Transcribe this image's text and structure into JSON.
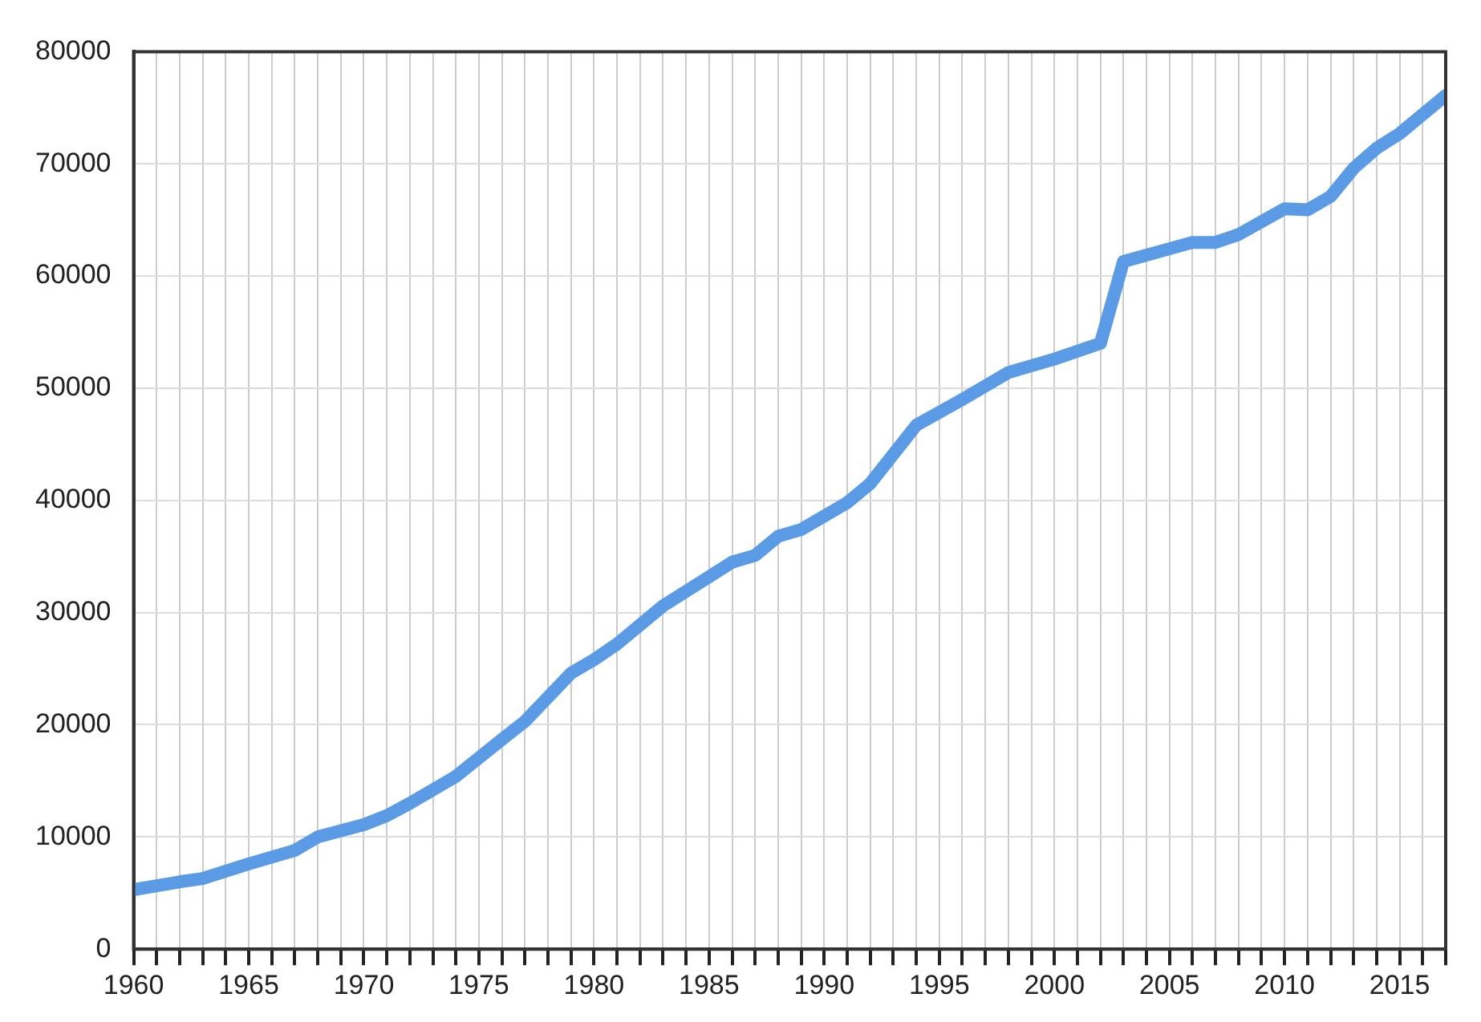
{
  "chart_data": {
    "type": "line",
    "x": [
      1960,
      1962,
      1963,
      1965,
      1967,
      1968,
      1970,
      1971,
      1972,
      1974,
      1976,
      1977,
      1979,
      1980,
      1981,
      1983,
      1985,
      1986,
      1987,
      1988,
      1989,
      1991,
      1992,
      1994,
      1996,
      1998,
      2000,
      2002,
      2003,
      2006,
      2007,
      2008,
      2010,
      2011,
      2012,
      2013,
      2014,
      2015,
      2017
    ],
    "series": [
      {
        "color": "#5b9be6",
        "values": [
          5300,
          6000,
          6300,
          7600,
          8800,
          10000,
          11100,
          11900,
          13000,
          15400,
          18700,
          20300,
          24600,
          25800,
          27200,
          30600,
          33200,
          34500,
          35100,
          36800,
          37400,
          39800,
          41500,
          46700,
          49000,
          51400,
          52600,
          54000,
          61300,
          63000,
          63000,
          63700,
          66000,
          65900,
          67100,
          69600,
          71400,
          72700,
          76100
        ]
      }
    ],
    "xlim": [
      1960,
      2017
    ],
    "xticks": [
      1960,
      {
        "value": 1961,
        "label": null
      },
      {
        "value": 1962,
        "label": null
      },
      {
        "value": 1963,
        "label": null
      },
      {
        "value": 1964,
        "label": null
      },
      1965,
      {
        "value": 1966,
        "label": null
      },
      {
        "value": 1967,
        "label": null
      },
      {
        "value": 1968,
        "label": null
      },
      {
        "value": 1969,
        "label": null
      },
      1970,
      {
        "value": 1971,
        "label": null
      },
      {
        "value": 1972,
        "label": null
      },
      {
        "value": 1973,
        "label": null
      },
      {
        "value": 1974,
        "label": null
      },
      1975,
      {
        "value": 1976,
        "label": null
      },
      {
        "value": 1977,
        "label": null
      },
      {
        "value": 1978,
        "label": null
      },
      {
        "value": 1979,
        "label": null
      },
      1980,
      {
        "value": 1981,
        "label": null
      },
      {
        "value": 1982,
        "label": null
      },
      {
        "value": 1983,
        "label": null
      },
      {
        "value": 1984,
        "label": null
      },
      1985,
      {
        "value": 1986,
        "label": null
      },
      {
        "value": 1987,
        "label": null
      },
      {
        "value": 1988,
        "label": null
      },
      {
        "value": 1989,
        "label": null
      },
      1990,
      {
        "value": 1991,
        "label": null
      },
      {
        "value": 1992,
        "label": null
      },
      {
        "value": 1993,
        "label": null
      },
      {
        "value": 1994,
        "label": null
      },
      1995,
      {
        "value": 1996,
        "label": null
      },
      {
        "value": 1997,
        "label": null
      },
      {
        "value": 1998,
        "label": null
      },
      {
        "value": 1999,
        "label": null
      },
      2000,
      {
        "value": 2001,
        "label": null
      },
      {
        "value": 2002,
        "label": null
      },
      {
        "value": 2003,
        "label": null
      },
      {
        "value": 2004,
        "label": null
      },
      2005,
      {
        "value": 2006,
        "label": null
      },
      {
        "value": 2007,
        "label": null
      },
      {
        "value": 2008,
        "label": null
      },
      {
        "value": 2009,
        "label": null
      },
      2010,
      {
        "value": 2011,
        "label": null
      },
      {
        "value": 2012,
        "label": null
      },
      {
        "value": 2013,
        "label": null
      },
      {
        "value": 2014,
        "label": null
      },
      2015,
      {
        "value": 2016,
        "label": null
      },
      {
        "value": 2017,
        "label": null
      }
    ],
    "ylim": [
      0,
      80000
    ],
    "yticks": [
      0,
      10000,
      20000,
      30000,
      40000,
      50000,
      60000,
      70000,
      80000
    ],
    "grid": true,
    "legend": false,
    "marker": "none",
    "line_style": "solid"
  }
}
